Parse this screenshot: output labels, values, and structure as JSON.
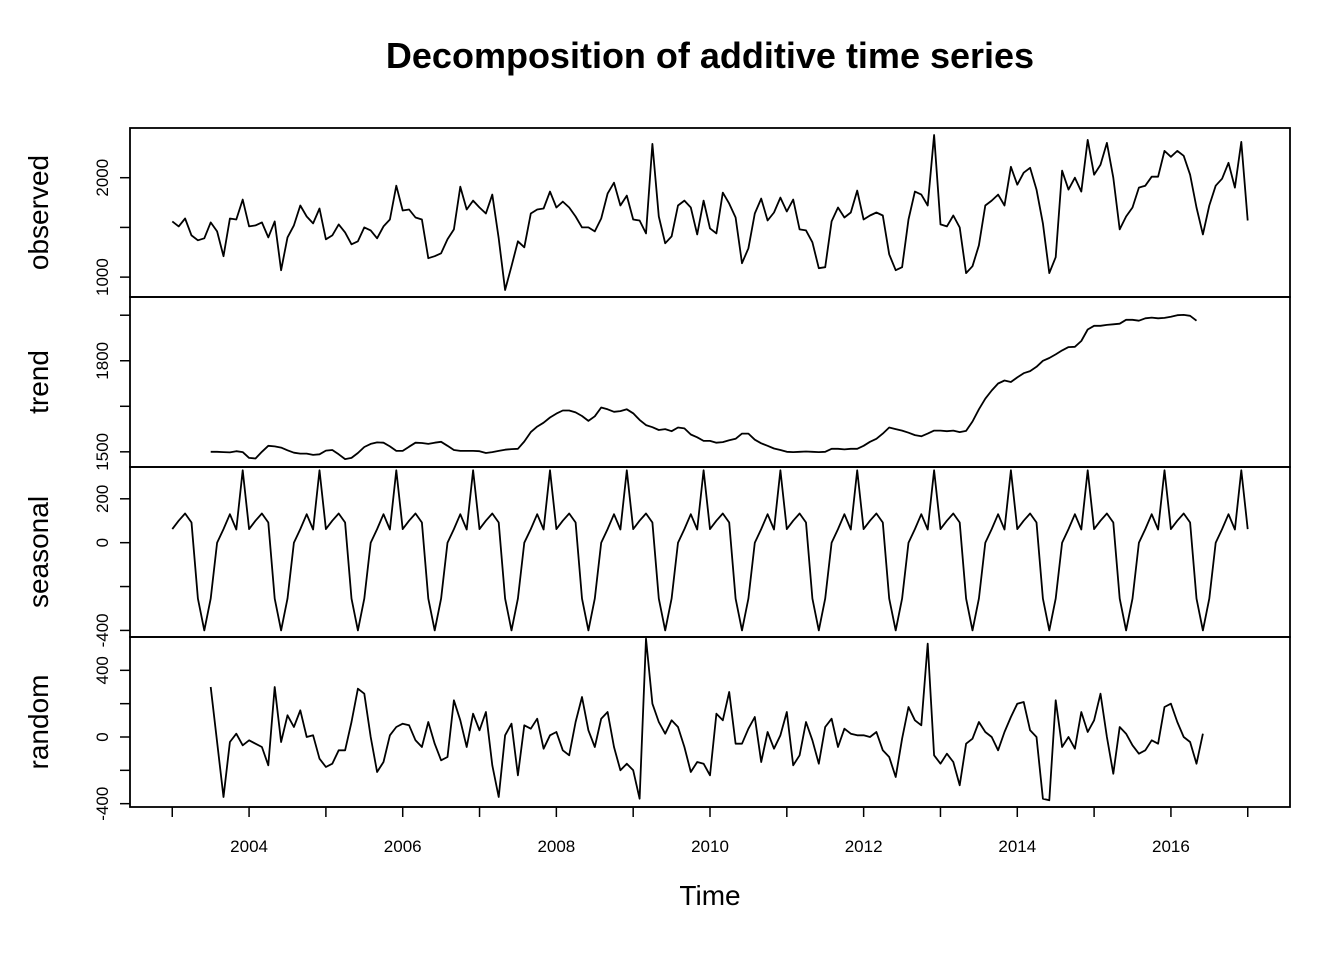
{
  "chart_data": {
    "type": "line",
    "title": "Decomposition of additive time series",
    "xlabel": "Time",
    "xlim": [
      2002.45,
      2017.55
    ],
    "x_ticks": [
      "2004",
      "2006",
      "2008",
      "2010",
      "2012",
      "2014",
      "2016"
    ],
    "x_tick_values": [
      2004,
      2006,
      2008,
      2010,
      2012,
      2014,
      2016
    ],
    "series_start": 2003.0,
    "frequency": 12,
    "grid": false,
    "panels": [
      {
        "name": "observed",
        "ylabel": "observed",
        "ylim": [
          800,
          2500
        ],
        "y_ticks": [
          "1000",
          "2000"
        ],
        "y_tick_values": [
          1000,
          2000
        ],
        "y_minor_ticks": [
          1500
        ],
        "offset": 0,
        "values": [
          1560,
          1510,
          1590,
          1420,
          1370,
          1390,
          1550,
          1460,
          1210,
          1590,
          1580,
          1780,
          1510,
          1520,
          1550,
          1400,
          1560,
          1070,
          1400,
          1520,
          1720,
          1610,
          1540,
          1690,
          1380,
          1420,
          1530,
          1450,
          1330,
          1360,
          1500,
          1470,
          1390,
          1510,
          1580,
          1920,
          1670,
          1680,
          1600,
          1580,
          1190,
          1210,
          1240,
          1380,
          1480,
          1910,
          1680,
          1770,
          1700,
          1640,
          1830,
          1390,
          870,
          1110,
          1360,
          1300,
          1640,
          1680,
          1690,
          1860,
          1700,
          1760,
          1700,
          1610,
          1500,
          1500,
          1460,
          1590,
          1840,
          1950,
          1720,
          1820,
          1580,
          1570,
          1440,
          2340,
          1610,
          1340,
          1410,
          1720,
          1770,
          1700,
          1430,
          1770,
          1490,
          1440,
          1850,
          1740,
          1600,
          1140,
          1290,
          1640,
          1790,
          1570,
          1650,
          1800,
          1660,
          1780,
          1480,
          1470,
          1350,
          1090,
          1100,
          1560,
          1700,
          1600,
          1650,
          1870,
          1580,
          1620,
          1650,
          1620,
          1230,
          1070,
          1100,
          1580,
          1860,
          1830,
          1720,
          2430,
          1530,
          1510,
          1620,
          1500,
          1040,
          1110,
          1320,
          1720,
          1770,
          1830,
          1720,
          2110,
          1930,
          2050,
          2100,
          1880,
          1540,
          1040,
          1200,
          2070,
          1880,
          2000,
          1860,
          2380,
          2030,
          2130,
          2350,
          2000,
          1480,
          1610,
          1700,
          1900,
          1920,
          2010,
          2010,
          2270,
          2210,
          2270,
          2220,
          2030,
          1700,
          1430,
          1720,
          1920,
          1990,
          2150,
          1900,
          2360,
          1570
        ]
      },
      {
        "name": "trend",
        "ylabel": "trend",
        "ylim": [
          1450,
          2010
        ],
        "y_ticks": [
          "1500",
          "1800"
        ],
        "y_tick_values": [
          1500,
          1800
        ],
        "y_minor_ticks": [
          1650,
          1950
        ],
        "offset": 6,
        "values": [
          1500,
          1500,
          1499,
          1498,
          1502,
          1499,
          1480,
          1478,
          1500,
          1520,
          1518,
          1514,
          1505,
          1497,
          1494,
          1494,
          1490,
          1492,
          1504,
          1506,
          1492,
          1476,
          1480,
          1496,
          1516,
          1526,
          1531,
          1530,
          1518,
          1503,
          1503,
          1517,
          1530,
          1529,
          1526,
          1530,
          1533,
          1520,
          1506,
          1503,
          1503,
          1503,
          1502,
          1496,
          1499,
          1503,
          1507,
          1509,
          1510,
          1534,
          1565,
          1583,
          1596,
          1613,
          1626,
          1636,
          1636,
          1630,
          1618,
          1602,
          1617,
          1646,
          1640,
          1632,
          1634,
          1640,
          1627,
          1605,
          1588,
          1581,
          1572,
          1575,
          1568,
          1580,
          1577,
          1557,
          1548,
          1536,
          1536,
          1530,
          1532,
          1538,
          1543,
          1560,
          1560,
          1540,
          1528,
          1520,
          1511,
          1506,
          1500,
          1499,
          1500,
          1501,
          1500,
          1499,
          1500,
          1510,
          1510,
          1508,
          1510,
          1510,
          1520,
          1533,
          1543,
          1560,
          1580,
          1575,
          1570,
          1563,
          1555,
          1551,
          1560,
          1570,
          1570,
          1568,
          1570,
          1565,
          1569,
          1600,
          1640,
          1675,
          1702,
          1725,
          1735,
          1730,
          1745,
          1759,
          1766,
          1780,
          1800,
          1809,
          1821,
          1834,
          1845,
          1846,
          1865,
          1903,
          1915,
          1915,
          1918,
          1920,
          1922,
          1935,
          1935,
          1932,
          1940,
          1942,
          1940,
          1941,
          1945,
          1950,
          1951,
          1948,
          1932
        ]
      },
      {
        "name": "seasonal",
        "ylabel": "seasonal",
        "ylim": [
          -430,
          345
        ],
        "y_ticks": [
          "-400",
          "0",
          "200"
        ],
        "y_tick_values": [
          -400,
          0,
          200
        ],
        "y_minor_ticks": [
          -200
        ],
        "offset": 0,
        "cycle": [
          62,
          100,
          133,
          92,
          -255,
          -400,
          -255,
          0,
          62,
          130,
          60,
          330
        ]
      },
      {
        "name": "random",
        "ylabel": "random",
        "ylim": [
          -420,
          600
        ],
        "y_ticks": [
          "-400",
          "0",
          "400"
        ],
        "y_tick_values": [
          -400,
          0,
          400
        ],
        "y_minor_ticks": [
          -200,
          200
        ],
        "offset": 6,
        "values": [
          300,
          -30,
          -360,
          -30,
          20,
          -50,
          -20,
          -40,
          -60,
          -170,
          300,
          -30,
          130,
          60,
          160,
          0,
          10,
          -130,
          -180,
          -160,
          -80,
          -80,
          90,
          290,
          260,
          0,
          -210,
          -150,
          10,
          60,
          80,
          70,
          -20,
          -60,
          90,
          -40,
          -140,
          -120,
          220,
          100,
          -60,
          140,
          40,
          150,
          -170,
          -360,
          10,
          80,
          -230,
          70,
          50,
          110,
          -70,
          10,
          30,
          -80,
          -110,
          90,
          240,
          40,
          -60,
          110,
          150,
          -60,
          -200,
          -160,
          -200,
          -370,
          590,
          200,
          90,
          20,
          100,
          60,
          -60,
          -210,
          -150,
          -160,
          -230,
          140,
          100,
          270,
          -40,
          -40,
          50,
          120,
          -150,
          30,
          -70,
          10,
          150,
          -170,
          -110,
          90,
          -20,
          -160,
          60,
          110,
          -60,
          50,
          20,
          10,
          10,
          0,
          30,
          -80,
          -120,
          -240,
          -10,
          180,
          100,
          70,
          560,
          -110,
          -160,
          -100,
          -150,
          -290,
          -40,
          -10,
          90,
          30,
          0,
          -80,
          30,
          120,
          200,
          210,
          40,
          0,
          -370,
          -380,
          220,
          -60,
          0,
          -70,
          150,
          30,
          100,
          260,
          0,
          -220,
          60,
          20,
          -50,
          -100,
          -80,
          -20,
          -40,
          180,
          200,
          90,
          0,
          -30,
          -160,
          20
        ]
      }
    ]
  }
}
